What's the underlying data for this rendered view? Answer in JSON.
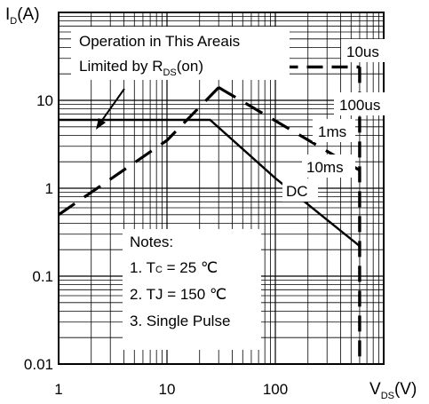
{
  "chart_data": {
    "type": "line",
    "scale": {
      "x": "log",
      "y": "log"
    },
    "xlim": [
      1,
      1000
    ],
    "ylim": [
      0.01,
      100
    ],
    "grid": true,
    "ylabel": {
      "main": "I",
      "sub": "D",
      "tail": "(A)"
    },
    "xlabel": {
      "main": "V",
      "sub": "DS",
      "tail": "(V)"
    },
    "x_ticks": [
      {
        "value": 1,
        "label": "1"
      },
      {
        "value": 10,
        "label": "10"
      },
      {
        "value": 100,
        "label": "100"
      }
    ],
    "y_ticks": [
      {
        "value": 10,
        "label": "10"
      },
      {
        "value": 1,
        "label": "1"
      },
      {
        "value": 0.1,
        "label": "0.1"
      },
      {
        "value": 0.01,
        "label": "0.01"
      }
    ],
    "series": [
      {
        "name": "10us",
        "points": [
          [
            40,
            24
          ],
          [
            200,
            24
          ],
          [
            600,
            24
          ]
        ]
      },
      {
        "name": "100us",
        "points": [
          [
            30,
            14
          ],
          [
            600,
            1.6
          ]
        ]
      },
      {
        "name": "1ms",
        "points": [
          [
            600,
            0.4
          ]
        ]
      },
      {
        "name": "10ms",
        "points": [
          [
            600,
            0.3
          ]
        ]
      },
      {
        "name": "DC",
        "points": [
          [
            1,
            6
          ],
          [
            25,
            6
          ],
          [
            100,
            1.3
          ],
          [
            600,
            0.22
          ]
        ]
      },
      {
        "name": "rds_limit",
        "points": [
          [
            1,
            0.5
          ],
          [
            10,
            3.5
          ],
          [
            30,
            14
          ]
        ]
      },
      {
        "name": "vds_limit",
        "points": [
          [
            600,
            24
          ],
          [
            600,
            0.01
          ]
        ]
      }
    ],
    "labels": [
      "10us",
      "100us",
      "1ms",
      "10ms",
      "DC"
    ],
    "rds_note": {
      "line1": "Operation in This Areais",
      "line2_pre": "Limited by R",
      "line2_sub": "DS",
      "line2_post": "(on)"
    },
    "notes": [
      "Notes:",
      "1. T",
      "C",
      " = 25 ℃",
      "2. TJ = 150 ℃",
      "3. Single Pulse"
    ]
  }
}
